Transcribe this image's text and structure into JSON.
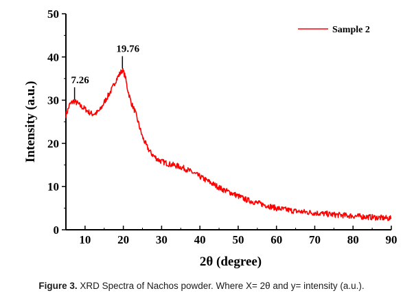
{
  "chart_data": {
    "type": "line",
    "xlabel": "2θ (degree)",
    "ylabel": "Intensity (a.u.)",
    "xlim": [
      5,
      90
    ],
    "ylim": [
      0,
      50
    ],
    "xticks": [
      10,
      20,
      30,
      40,
      50,
      60,
      70,
      80,
      90
    ],
    "yticks": [
      0,
      10,
      20,
      30,
      40,
      50
    ],
    "legend": "top-right",
    "grid": false,
    "series": [
      {
        "name": "Sample 2",
        "color": "#ff0000",
        "x": [
          5,
          6,
          7,
          8,
          9,
          10,
          11,
          12,
          13,
          14,
          15,
          16,
          17,
          18,
          19,
          19.76,
          20.5,
          21,
          22,
          23,
          24,
          25,
          26,
          27,
          28,
          29,
          30,
          32,
          34,
          36,
          38,
          40,
          42,
          44,
          46,
          48,
          50,
          52,
          55,
          58,
          60,
          65,
          70,
          75,
          80,
          85,
          90
        ],
        "y": [
          26.5,
          29.0,
          29.8,
          29.3,
          28.5,
          28.0,
          27.2,
          26.8,
          27.0,
          27.8,
          29.5,
          31.0,
          32.5,
          34.5,
          36.0,
          37.0,
          35.5,
          33.0,
          29.5,
          27.5,
          24.5,
          21.5,
          19.5,
          18.0,
          17.0,
          16.3,
          15.8,
          15.2,
          14.8,
          14.2,
          13.3,
          12.3,
          11.3,
          10.3,
          9.3,
          8.6,
          7.8,
          7.0,
          6.2,
          5.5,
          5.0,
          4.3,
          3.9,
          3.5,
          3.2,
          2.9,
          2.6
        ]
      }
    ],
    "annotations": [
      {
        "x": 7.26,
        "y": 29.8,
        "text": "7.26"
      },
      {
        "x": 19.76,
        "y": 37.0,
        "text": "19.76"
      }
    ]
  },
  "caption": {
    "label": "Figure 3.",
    "text": "XRD Spectra of Nachos powder. Where X= 2θ and y= intensity (a.u.)."
  }
}
